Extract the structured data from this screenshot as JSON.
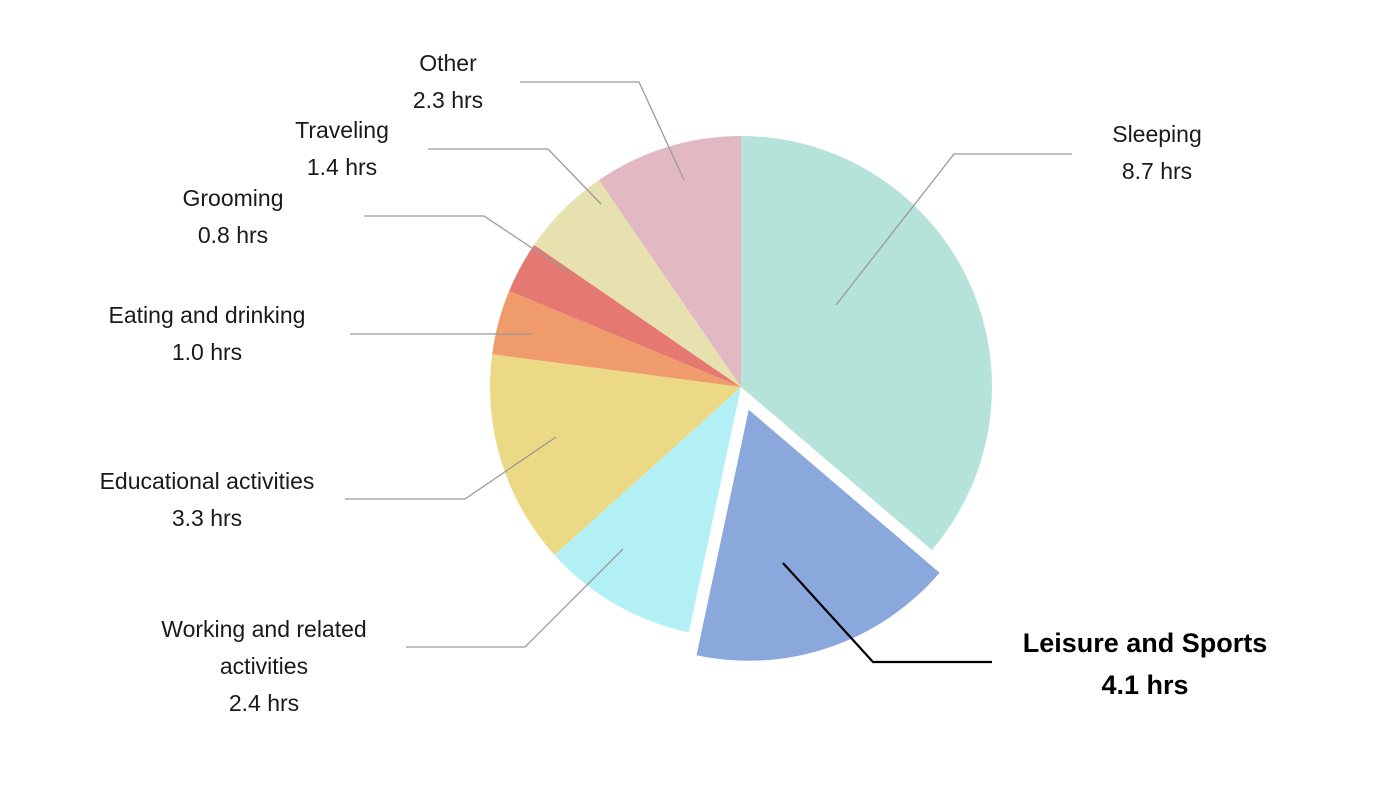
{
  "chart_data": {
    "type": "pie",
    "start": "top",
    "direction": "clockwise",
    "unit": "hrs",
    "highlight": "Leisure and Sports",
    "slices": [
      {
        "label": "Sleeping",
        "value": 8.7,
        "value_label": "8.7 hrs",
        "color": "#b5e3da"
      },
      {
        "label": "Leisure and Sports",
        "value": 4.1,
        "value_label": "4.1 hrs",
        "color": "#8aa8dc",
        "exploded": true
      },
      {
        "label": "Working and related activities",
        "value": 2.4,
        "value_label": "2.4 hrs",
        "color": "#b3f0f5"
      },
      {
        "label": "Educational activities",
        "value": 3.3,
        "value_label": "3.3 hrs",
        "color": "#ecd985"
      },
      {
        "label": "Eating and drinking",
        "value": 1.0,
        "value_label": "1.0 hrs",
        "color": "#f09b6b"
      },
      {
        "label": "Grooming",
        "value": 0.8,
        "value_label": "0.8 hrs",
        "color": "#e57870"
      },
      {
        "label": "Traveling",
        "value": 1.4,
        "value_label": "1.4 hrs",
        "color": "#e6e1ae"
      },
      {
        "label": "Other",
        "value": 2.3,
        "value_label": "2.3 hrs",
        "color": "#e2b9c3"
      }
    ]
  }
}
